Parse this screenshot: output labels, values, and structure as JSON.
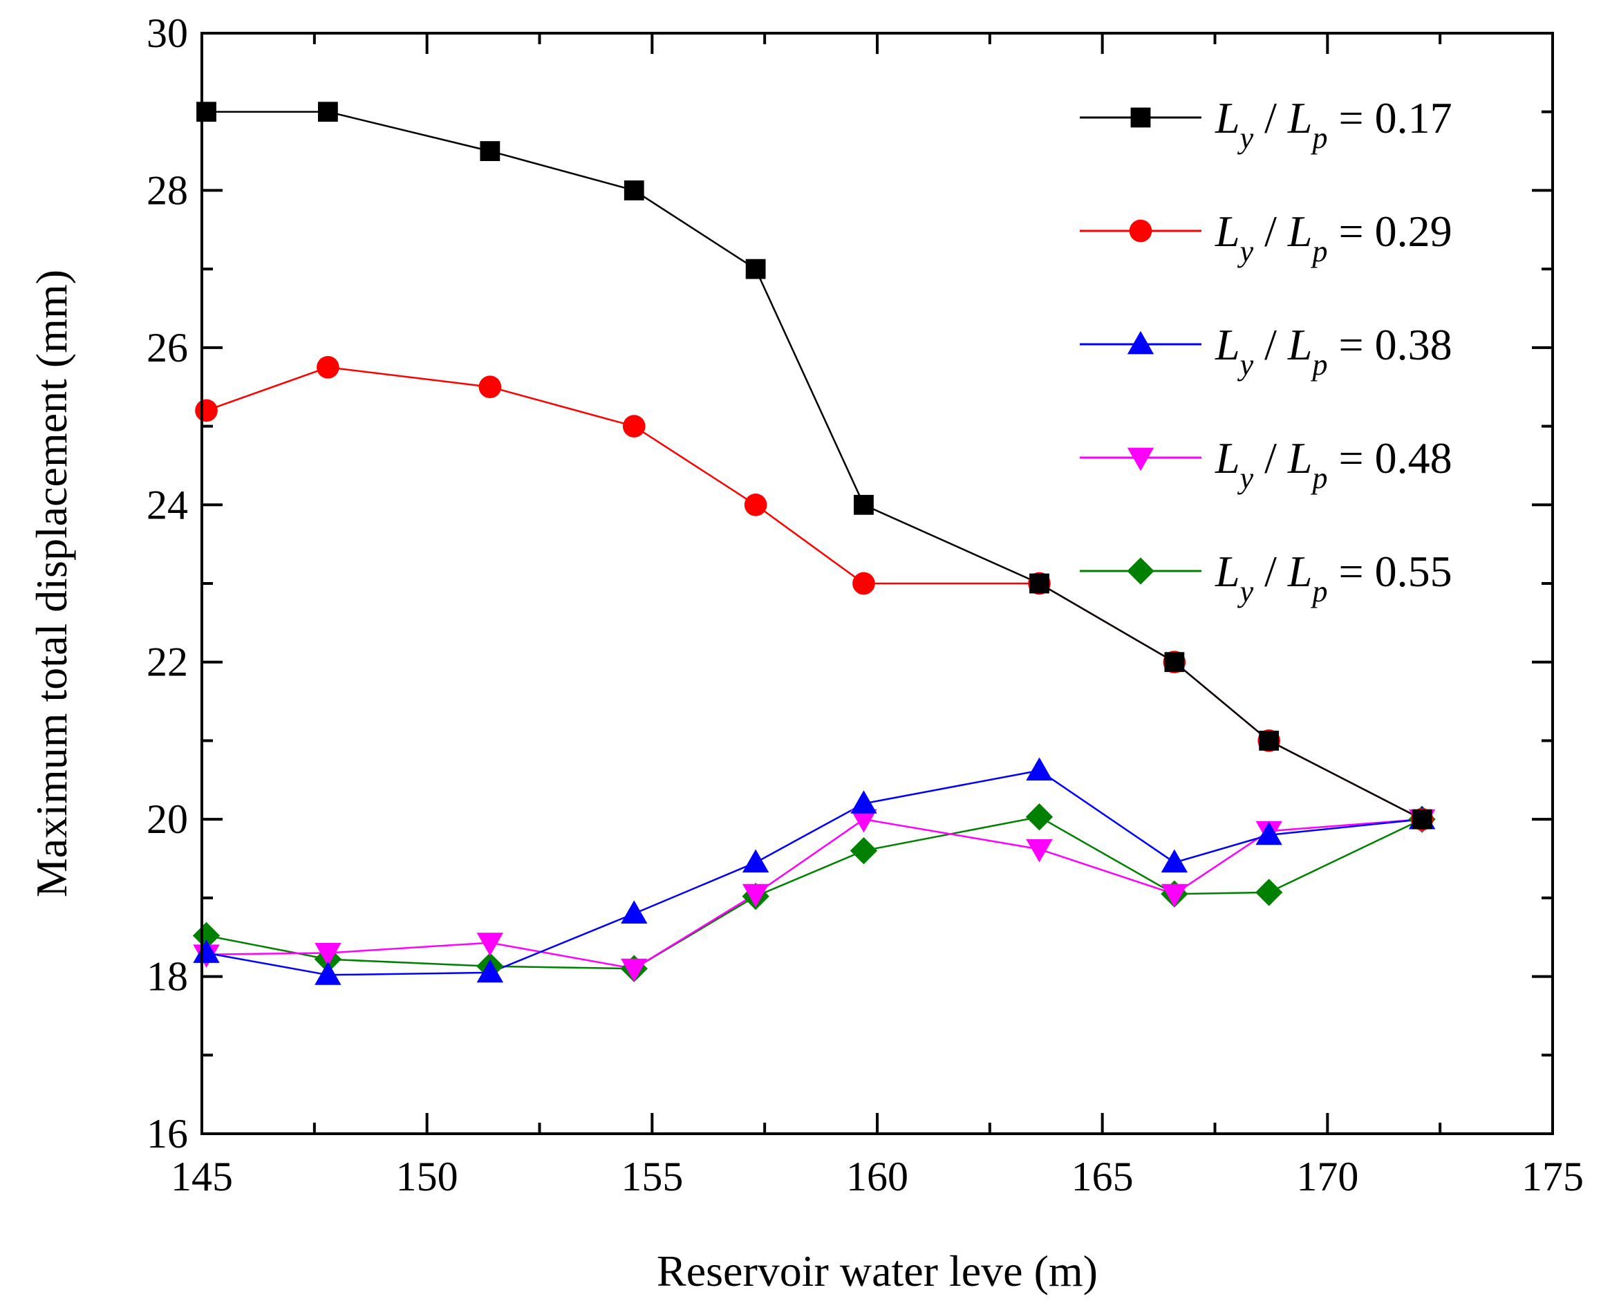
{
  "chart_data": {
    "type": "line",
    "xlabel": "Reservoir water leve (m)",
    "ylabel": "Maximum total displacement (mm)",
    "xlim": [
      145,
      175
    ],
    "ylim": [
      16,
      30
    ],
    "x_ticks": [
      "145",
      "150",
      "155",
      "160",
      "165",
      "170",
      "175"
    ],
    "y_ticks": [
      "16",
      "18",
      "20",
      "22",
      "24",
      "26",
      "28",
      "30"
    ],
    "legend_position": "top-right",
    "legend_prefix": {
      "L1": "L",
      "sub_y": "y",
      "slash": " / ",
      "L2": "L",
      "sub_p": "p",
      "eq": " = "
    },
    "x": [
      145.1,
      147.8,
      151.4,
      154.6,
      157.3,
      159.7,
      163.6,
      166.6,
      168.7,
      172.1
    ],
    "series": [
      {
        "name": "Ly / Lp = 0.17",
        "ratio": "0.17",
        "color": "#000000",
        "line_color": "#000000",
        "marker": "square",
        "values": [
          29.0,
          29.0,
          28.5,
          28.0,
          27.0,
          24.0,
          23.0,
          22.0,
          21.0,
          20.0
        ]
      },
      {
        "name": "Ly / Lp = 0.29",
        "ratio": "0.29",
        "color": "#ff0000",
        "line_color": "#ff0000",
        "marker": "circle",
        "values": [
          25.2,
          25.75,
          25.5,
          25.0,
          24.0,
          23.0,
          23.0,
          22.0,
          21.0,
          20.0
        ]
      },
      {
        "name": "Ly / Lp = 0.38",
        "ratio": "0.38",
        "color": "#0000ff",
        "line_color": "#0000ff",
        "marker": "triangle-up",
        "values": [
          18.3,
          18.02,
          18.05,
          18.8,
          19.45,
          20.2,
          20.62,
          19.45,
          19.8,
          20.0
        ]
      },
      {
        "name": "Ly / Lp = 0.48",
        "ratio": "0.48",
        "color": "#ff00ff",
        "line_color": "#ff00ff",
        "marker": "triangle-down",
        "values": [
          18.28,
          18.3,
          18.43,
          18.1,
          19.05,
          20.0,
          19.62,
          19.05,
          19.85,
          20.0
        ]
      },
      {
        "name": "Ly / Lp = 0.55",
        "ratio": "0.55",
        "color": "#008000",
        "line_color": "#008000",
        "marker": "diamond",
        "values": [
          18.52,
          18.22,
          18.13,
          18.1,
          19.02,
          19.6,
          20.03,
          19.05,
          19.07,
          20.0
        ]
      }
    ]
  }
}
